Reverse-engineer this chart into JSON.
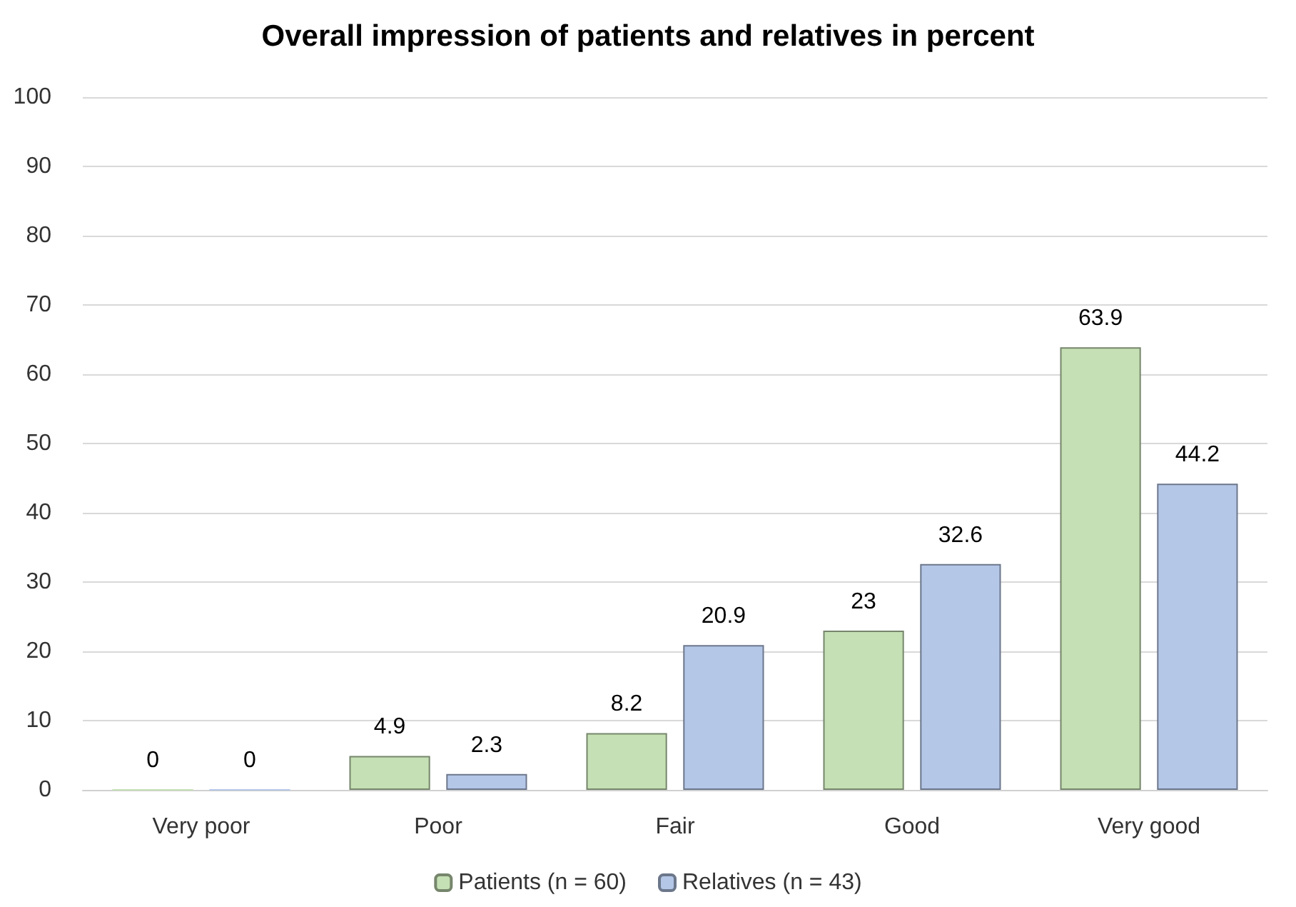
{
  "chart_data": {
    "type": "bar",
    "title": "Overall impression of patients and relatives in percent",
    "categories": [
      "Very poor",
      "Poor",
      "Fair",
      "Good",
      "Very good"
    ],
    "series": [
      {
        "name": "Patients (n = 60)",
        "color": "#c5e0b4",
        "values": [
          0,
          4.9,
          8.2,
          23,
          63.9
        ]
      },
      {
        "name": "Relatives (n = 43)",
        "color": "#b4c7e7",
        "values": [
          0,
          2.3,
          20.9,
          32.6,
          44.2
        ]
      }
    ],
    "ylim": [
      0,
      100
    ],
    "yticks": [
      0,
      10,
      20,
      30,
      40,
      50,
      60,
      70,
      80,
      90,
      100
    ],
    "grid": "y",
    "legend": "bottom",
    "data_labels": true
  }
}
